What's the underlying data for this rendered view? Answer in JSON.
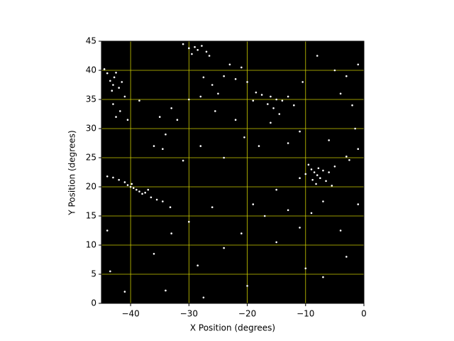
{
  "chart_data": {
    "type": "scatter",
    "xlabel": "X Position (degrees)",
    "ylabel": "Y Position (degrees)",
    "x": [
      -43.5,
      -43,
      -42.8,
      -44,
      -42,
      -43.2,
      -41.5,
      -44.5,
      -42.5,
      -41,
      -41.8,
      -42.5,
      -40.5,
      -43,
      -38.5,
      -40,
      -39.5,
      -39,
      -38.5,
      -38,
      -37.5,
      -40.5,
      -41,
      -42,
      -43,
      -44,
      -36.5,
      -35.5,
      -34.5,
      -33.2,
      -37,
      -39.8,
      -8,
      -8.5,
      -7.5,
      -9,
      -7,
      -8.8,
      -10,
      -6.5,
      -9.5,
      -7.8,
      -6,
      -5,
      -3,
      -2.5,
      -11,
      -8.2,
      -5.5,
      -7,
      -9,
      -29,
      -28.5,
      -27.8,
      -30,
      -27,
      -31,
      -26.5,
      -29.5,
      -16,
      -15,
      -16.5,
      -14,
      -17.5,
      -13,
      -15.5,
      -18.5,
      -12,
      -19,
      -14.5,
      -16,
      -22,
      -24,
      -26,
      -20,
      -21,
      -23,
      -25,
      -27.5,
      -35,
      -33,
      -34,
      -36,
      -34.5,
      -32,
      -30,
      -28,
      -25.5,
      -22,
      -20.5,
      -18,
      -24,
      -28,
      -31,
      -5,
      -3,
      -1,
      -8,
      -10.5,
      -4,
      -2,
      -1.5,
      -6,
      -11,
      -13,
      -1,
      -26,
      -19,
      -15,
      -13,
      -17,
      -21,
      -24,
      -30,
      -33,
      -44,
      -43.5,
      -41,
      -34,
      -28.5,
      -36,
      -15,
      -11,
      -4,
      -3,
      -7,
      -20,
      -27.5,
      -10,
      -1
    ],
    "values": [
      38.2,
      37.5,
      38.8,
      39.5,
      37,
      36.5,
      38,
      40.2,
      39.6,
      35.5,
      33,
      32,
      31.5,
      34.2,
      34.8,
      20,
      19.8,
      19.5,
      19.2,
      18.8,
      19,
      20.3,
      20.8,
      21.2,
      21.6,
      21.8,
      18.2,
      17.8,
      17.5,
      16.5,
      19.5,
      20.5,
      22,
      22.5,
      21.5,
      23,
      22.8,
      21.2,
      22.2,
      21,
      23.8,
      23.2,
      22.5,
      23.5,
      25.2,
      24.6,
      21.5,
      20.5,
      20.2,
      17.5,
      15.5,
      44,
      43.5,
      44.2,
      43.8,
      43.2,
      44.5,
      42.5,
      42.8,
      35.5,
      35,
      34.2,
      34.8,
      35.8,
      35.5,
      33.5,
      36.2,
      34,
      34.8,
      32.5,
      31,
      38.5,
      39,
      37.5,
      38,
      40.5,
      41,
      36,
      38.8,
      32,
      33.5,
      29,
      27,
      26.5,
      31.5,
      35,
      35.5,
      33,
      31.5,
      28.5,
      27,
      25,
      27,
      24.5,
      40,
      39,
      41,
      42.5,
      38,
      36,
      34,
      30,
      28,
      29.5,
      27.5,
      26.5,
      16.5,
      17,
      19.5,
      16,
      15,
      12,
      9.5,
      14,
      12,
      12.5,
      5.5,
      2,
      2.2,
      6.5,
      8.5,
      10.5,
      13,
      12.5,
      8,
      4.5,
      3,
      1,
      6,
      17
    ],
    "color": "#ffffff",
    "background": "#000000",
    "xlim": [
      -45,
      0
    ],
    "ylim": [
      0,
      45
    ],
    "xticks": [
      {
        "value": -40,
        "label": "−40"
      },
      {
        "value": -30,
        "label": "−30"
      },
      {
        "value": -20,
        "label": "−20"
      },
      {
        "value": -10,
        "label": "−10"
      },
      0
    ],
    "yticks": [
      0,
      5,
      10,
      15,
      20,
      25,
      30,
      35,
      40,
      45
    ],
    "grid": true,
    "grid_color": "#cccc00"
  }
}
